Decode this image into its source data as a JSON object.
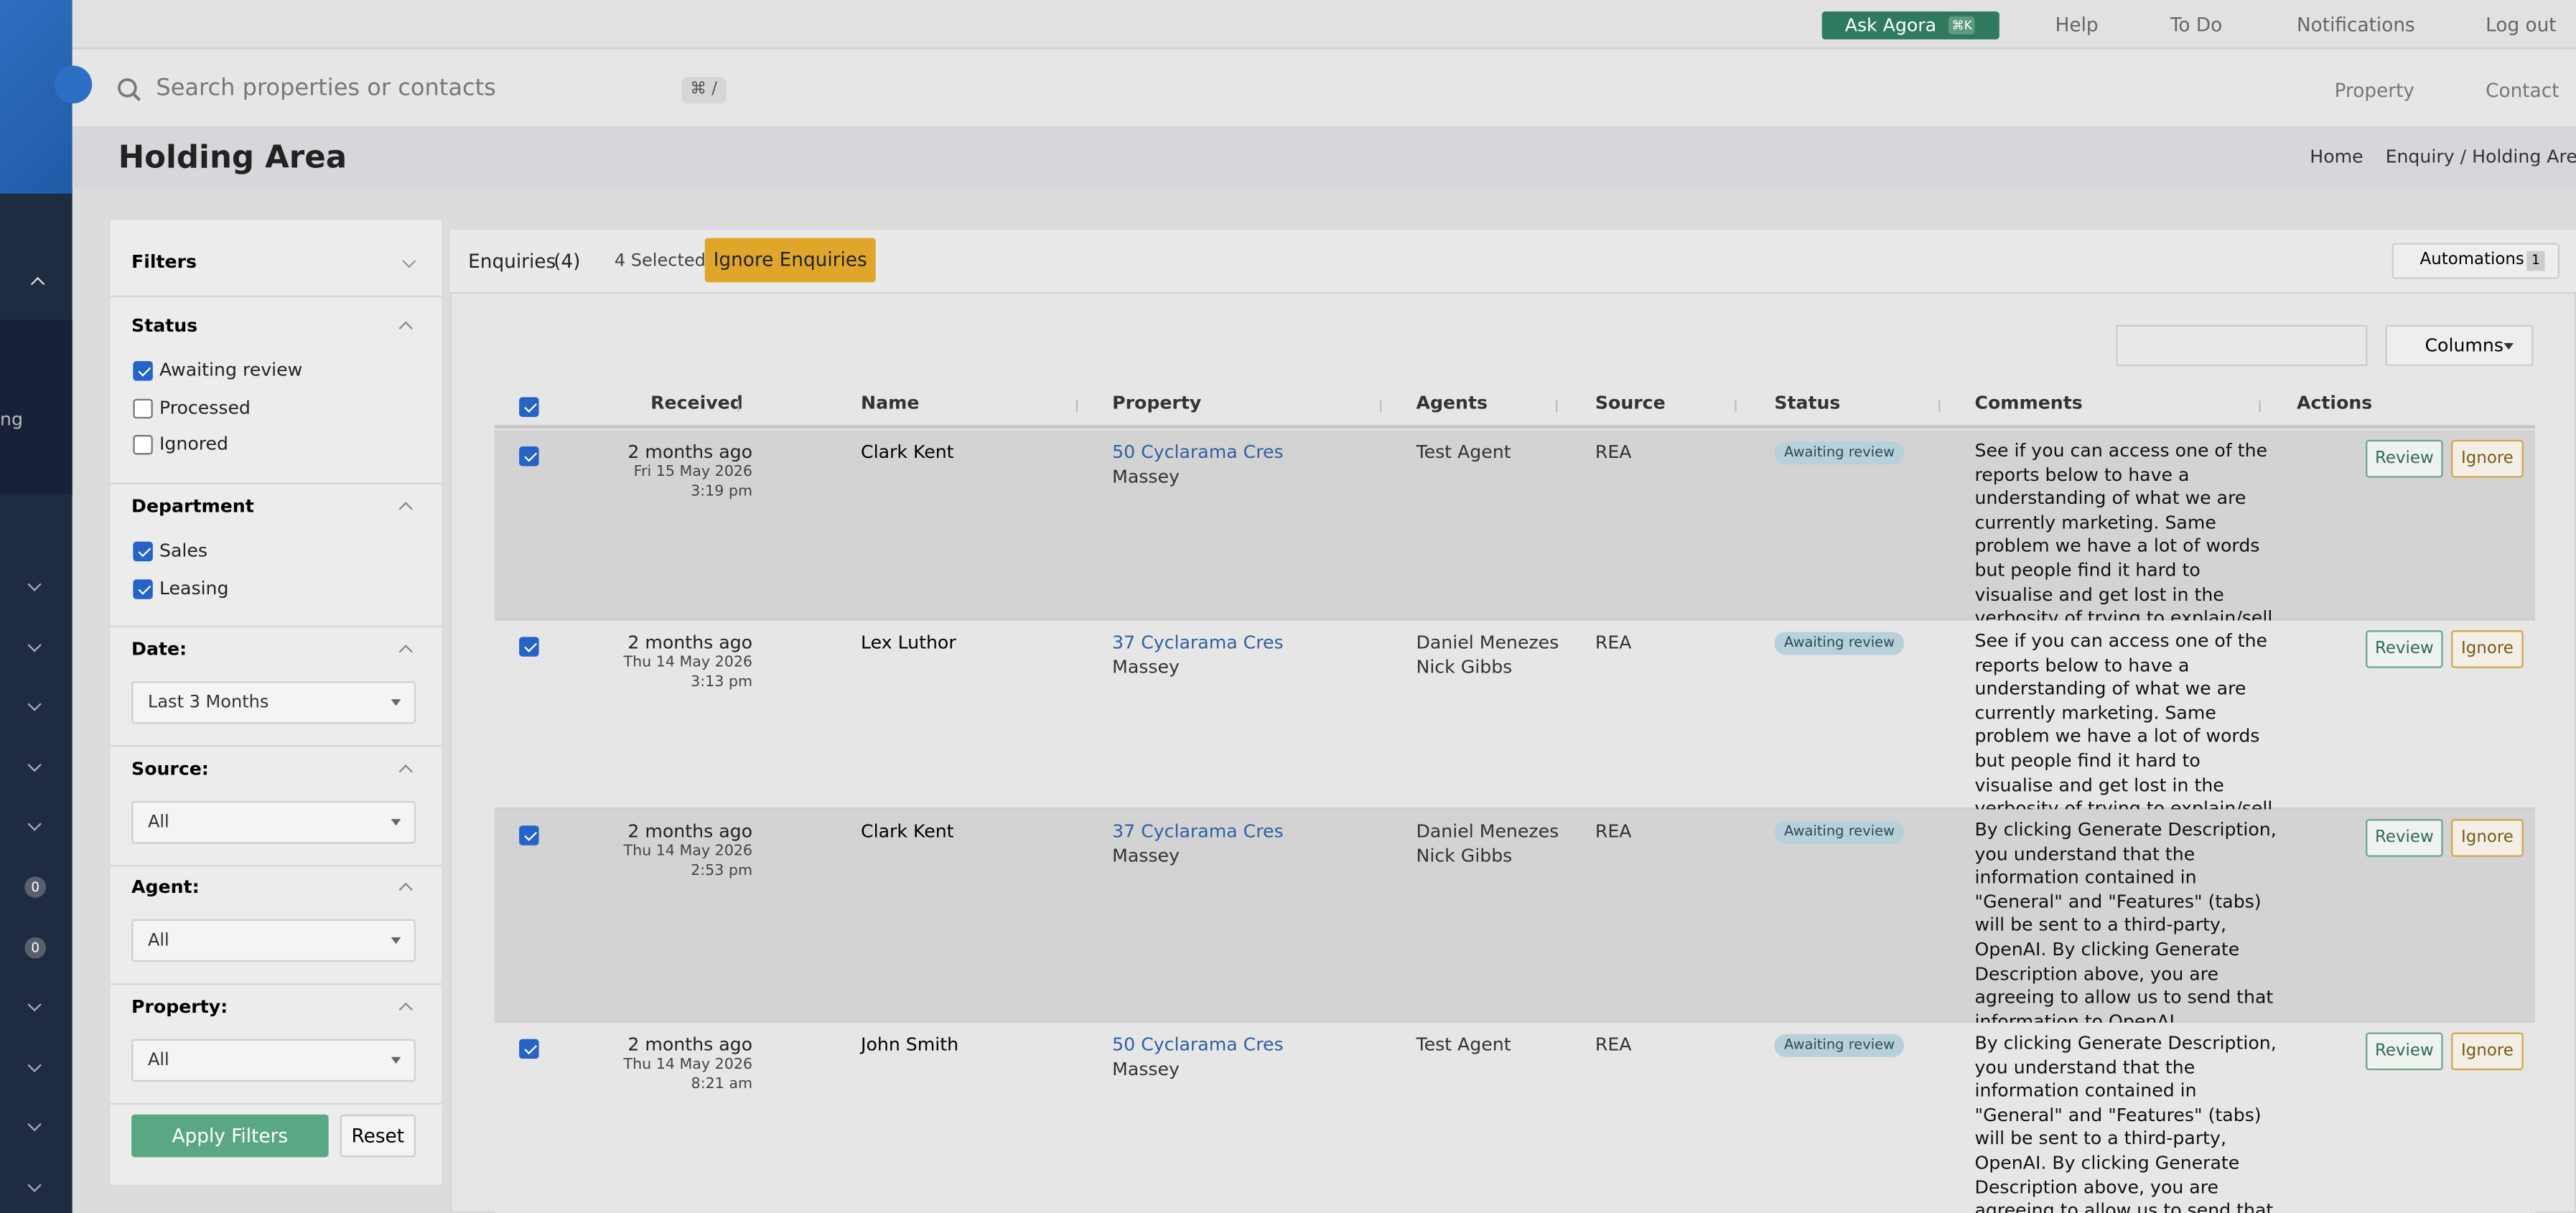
{
  "topbar": {
    "ask": "Ask Agora",
    "ask_shortcut": "⌘K",
    "links": [
      "Help",
      "To Do",
      "Notifications",
      "Log out"
    ]
  },
  "search": {
    "placeholder": "Search properties or contacts",
    "shortcut": "⌘ /",
    "buttons": [
      "Property",
      "Contact"
    ]
  },
  "page": {
    "title": "Holding Area",
    "breadcrumb": [
      "Home",
      "Enquiry / Holding Area"
    ]
  },
  "sidebar": {
    "partial_label": "ng",
    "badges": [
      "0",
      "0"
    ]
  },
  "filters": {
    "title": "Filters",
    "status": {
      "label": "Status",
      "options": [
        {
          "label": "Awaiting review",
          "checked": true
        },
        {
          "label": "Processed",
          "checked": false
        },
        {
          "label": "Ignored",
          "checked": false
        }
      ]
    },
    "department": {
      "label": "Department",
      "options": [
        {
          "label": "Sales",
          "checked": true
        },
        {
          "label": "Leasing",
          "checked": true
        }
      ]
    },
    "selects": [
      {
        "label": "Date:",
        "value": "Last 3 Months"
      },
      {
        "label": "Source:",
        "value": "All"
      },
      {
        "label": "Agent:",
        "value": "All"
      },
      {
        "label": "Property:",
        "value": "All"
      }
    ],
    "apply": "Apply Filters",
    "reset": "Reset"
  },
  "toolbar": {
    "tab": "Enquiries",
    "count": "(4)",
    "selected": "4 Selected",
    "ignore": "Ignore Enquiries",
    "automations": "Automations",
    "automations_count": "1",
    "columns": "Columns"
  },
  "table": {
    "columns": [
      "Received",
      "Name",
      "Property",
      "Agents",
      "Source",
      "Status",
      "Comments",
      "Actions"
    ],
    "rows": [
      {
        "checked": true,
        "received": "2 months ago",
        "date": "Fri 15 May 2026",
        "time": "3:19 pm",
        "name": "Clark Kent",
        "property": "50 Cyclarama Cres",
        "suburb": "Massey",
        "agents": [
          "Test Agent"
        ],
        "source": "REA",
        "status": "Awaiting review",
        "comments": "See if you can access one of the reports below to have a understanding of what we are currently marketing. Same problem we have a lot of words but people find it hard to visualise and get lost in the verbosity of trying to explain/sell lol.",
        "actions": [
          "Review",
          "Ignore"
        ]
      },
      {
        "checked": true,
        "received": "2 months ago",
        "date": "Thu 14 May 2026",
        "time": "3:13 pm",
        "name": "Lex Luthor",
        "property": "37 Cyclarama Cres",
        "suburb": "Massey",
        "agents": [
          "Daniel Menezes",
          "Nick Gibbs"
        ],
        "source": "REA",
        "status": "Awaiting review",
        "comments": "See if you can access one of the reports below to have a understanding of what we are currently marketing. Same problem we have a lot of words but people find it hard to visualise and get lost in the verbosity of trying to explain/sell lol.",
        "actions": [
          "Review",
          "Ignore"
        ]
      },
      {
        "checked": true,
        "received": "2 months ago",
        "date": "Thu 14 May 2026",
        "time": "2:53 pm",
        "name": "Clark Kent",
        "property": "37 Cyclarama Cres",
        "suburb": "Massey",
        "agents": [
          "Daniel Menezes",
          "Nick Gibbs"
        ],
        "source": "REA",
        "status": "Awaiting review",
        "comments": "By clicking Generate Description, you understand that the information contained in \"General\" and \"Features\" (tabs) will be sent to a third-party, OpenAI. By clicking Generate Description above, you are agreeing to allow us to send that information to OpenAI.",
        "actions": [
          "Review",
          "Ignore"
        ]
      },
      {
        "checked": true,
        "received": "2 months ago",
        "date": "Thu 14 May 2026",
        "time": "8:21 am",
        "name": "John Smith",
        "property": "50 Cyclarama Cres",
        "suburb": "Massey",
        "agents": [
          "Test Agent"
        ],
        "source": "REA",
        "status": "Awaiting review",
        "comments": "By clicking Generate Description, you understand that the information contained in \"General\" and \"Features\" (tabs) will be sent to a third-party, OpenAI. By clicking Generate Description above, you are agreeing to allow us to send that information to OpenAI.",
        "actions": [
          "Review",
          "Ignore"
        ]
      }
    ]
  }
}
